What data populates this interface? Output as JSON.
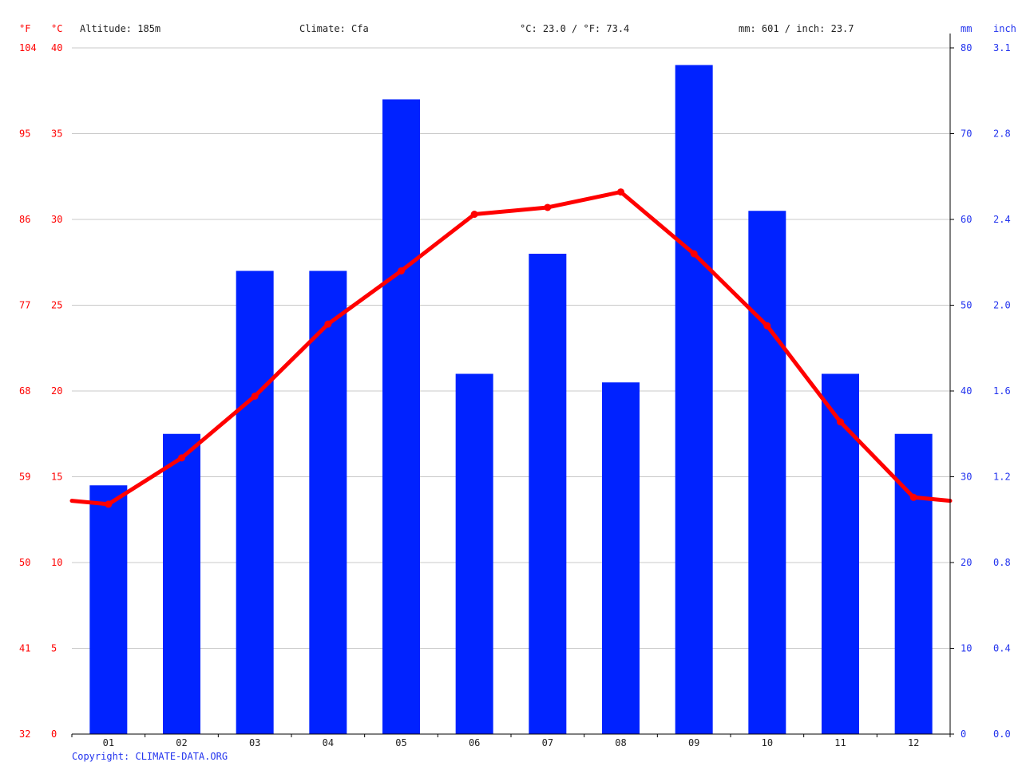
{
  "header": {
    "unit_f": "°F",
    "unit_c": "°C",
    "unit_mm": "mm",
    "unit_inch": "inch",
    "altitude": "Altitude: 185m",
    "climate": "Climate: Cfa",
    "temp_summary": "°C: 23.0 / °F: 73.4",
    "precip_summary": "mm: 601 / inch: 23.7"
  },
  "footer": {
    "copyright": "Copyright: CLIMATE-DATA.ORG"
  },
  "colors": {
    "bars": "#0022ff",
    "line": "#ff0000",
    "red_text": "#ff0000",
    "blue_text": "#2233ee",
    "grid": "#c8c8c8"
  },
  "chart_data": {
    "type": "bar",
    "categories": [
      "01",
      "02",
      "03",
      "04",
      "05",
      "06",
      "07",
      "08",
      "09",
      "10",
      "11",
      "12"
    ],
    "series": [
      {
        "values": [
          29,
          35,
          54,
          54,
          74,
          42,
          56,
          41,
          78,
          61,
          42,
          35
        ],
        "type": "bar",
        "axis": "right",
        "unit": "mm"
      },
      {
        "values": [
          13.4,
          16.1,
          19.7,
          23.9,
          27.0,
          30.3,
          30.7,
          31.6,
          28.0,
          23.8,
          18.2,
          13.8
        ],
        "type": "line",
        "axis": "left",
        "unit": "°C"
      }
    ],
    "line_edge_start": 13.6,
    "line_edge_end": 13.6,
    "y_left_c": {
      "range": [
        0,
        40
      ],
      "ticks": [
        "0",
        "5",
        "10",
        "15",
        "20",
        "25",
        "30",
        "35",
        "40"
      ]
    },
    "y_left_f": {
      "ticks": [
        "32",
        "41",
        "50",
        "59",
        "68",
        "77",
        "86",
        "95",
        "104"
      ]
    },
    "y_right_mm": {
      "range": [
        0,
        80
      ],
      "ticks": [
        "0",
        "10",
        "20",
        "30",
        "40",
        "50",
        "60",
        "70",
        "80"
      ]
    },
    "y_right_inch": {
      "ticks": [
        "0.0",
        "0.4",
        "0.8",
        "1.2",
        "1.6",
        "2.0",
        "2.4",
        "2.8",
        "3.1"
      ]
    },
    "grid": true
  }
}
